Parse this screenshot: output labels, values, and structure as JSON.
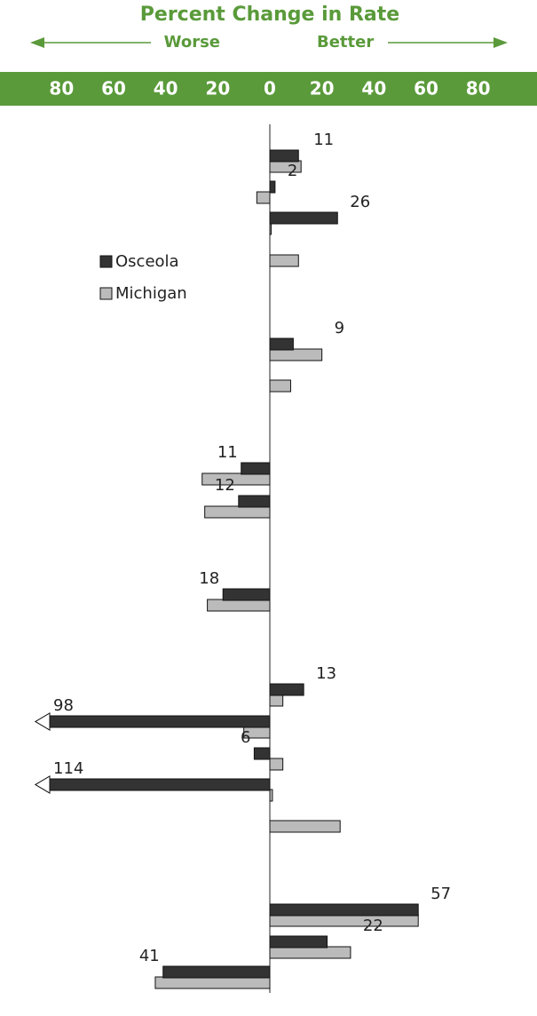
{
  "chart_data": {
    "type": "hbar",
    "title": "Percent Change in Rate",
    "left_label": "Worse",
    "right_label": "Better",
    "categories": [
      null,
      null,
      null,
      null,
      null,
      null,
      null,
      null,
      null,
      null,
      null,
      null,
      null,
      null,
      null,
      null,
      null
    ],
    "series": [
      {
        "name": "Osceola",
        "color": "#333333",
        "values": [
          11,
          2,
          26,
          null,
          9,
          null,
          -11,
          -12,
          -18,
          13,
          -98,
          -6,
          -114,
          null,
          57,
          22,
          -41
        ],
        "value_labels": [
          "11",
          "2",
          "26",
          null,
          "9",
          null,
          "11",
          "12",
          "18",
          "13",
          "98",
          "6",
          "114",
          null,
          "57",
          "22",
          "41"
        ]
      },
      {
        "name": "Michigan",
        "color": "#bbbbbb",
        "values": [
          12,
          -5,
          0.5,
          11,
          20,
          8,
          -26,
          -25,
          -24,
          5,
          -10,
          5,
          1,
          27,
          57,
          31,
          -44
        ]
      }
    ],
    "xlim": [
      -90,
      90
    ],
    "xticks": [
      {
        "value": -80,
        "label": "80"
      },
      {
        "value": -60,
        "label": "60"
      },
      {
        "value": -40,
        "label": "40"
      },
      {
        "value": -20,
        "label": "20"
      },
      0,
      20,
      40,
      60,
      80
    ]
  }
}
